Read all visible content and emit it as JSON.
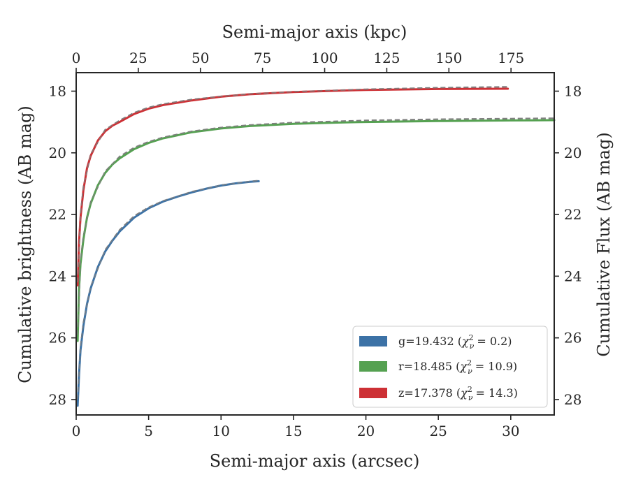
{
  "chart_data": {
    "type": "line",
    "xlabel": "Semi-major axis (arcsec)",
    "xlabel_top": "Semi-major axis (kpc)",
    "ylabel": "Cumulative brightness (AB mag)",
    "ylabel_right": "Cumulative Flux (AB mag)",
    "xlim": [
      0,
      33
    ],
    "ylim": [
      28.5,
      17.4
    ],
    "y_inverted": true,
    "x_ticks": [
      "0",
      "5",
      "10",
      "15",
      "20",
      "25",
      "30"
    ],
    "x_tick_values": [
      0,
      5,
      10,
      15,
      20,
      25,
      30
    ],
    "x_top_ticks": [
      "0",
      "25",
      "50",
      "75",
      "100",
      "125",
      "150",
      "175"
    ],
    "x_top_tick_values": [
      0,
      25,
      50,
      75,
      100,
      125,
      150,
      175
    ],
    "kpc_per_arcsec": 5.83,
    "y_ticks": [
      "18",
      "20",
      "22",
      "24",
      "26",
      "28"
    ],
    "y_tick_values": [
      18,
      20,
      22,
      24,
      26,
      28
    ],
    "grid": false,
    "legend_position": "bottom-right",
    "series": [
      {
        "name": "g",
        "legend_text": "g=19.432 (",
        "chi_value": "= 0.2)",
        "color": "#3c72a6",
        "x": [
          0.1,
          0.2,
          0.3,
          0.5,
          0.75,
          1,
          1.5,
          2,
          2.5,
          3,
          4,
          5,
          6,
          7,
          8,
          9,
          10,
          11,
          12,
          12.6
        ],
        "y": [
          28.2,
          27.2,
          26.4,
          25.6,
          24.9,
          24.4,
          23.7,
          23.2,
          22.85,
          22.55,
          22.1,
          21.8,
          21.58,
          21.42,
          21.28,
          21.16,
          21.06,
          20.99,
          20.94,
          20.92
        ]
      },
      {
        "name": "r",
        "legend_text": "r=18.485 (",
        "chi_value": "= 10.9)",
        "color": "#55a151",
        "x": [
          0.1,
          0.2,
          0.3,
          0.5,
          0.75,
          1,
          1.5,
          2,
          2.5,
          3,
          4,
          5,
          6,
          8,
          10,
          12,
          15,
          18,
          20,
          25,
          30,
          33
        ],
        "y": [
          26.1,
          24.4,
          23.6,
          22.8,
          22.1,
          21.65,
          21.05,
          20.65,
          20.38,
          20.18,
          19.88,
          19.68,
          19.53,
          19.33,
          19.21,
          19.13,
          19.06,
          19.02,
          19.0,
          18.97,
          18.95,
          18.94
        ]
      },
      {
        "name": "z",
        "legend_text": "z=17.378 (",
        "chi_value": "= 14.3)",
        "color": "#cd3035",
        "x": [
          0.1,
          0.2,
          0.3,
          0.5,
          0.75,
          1,
          1.5,
          2,
          2.5,
          3,
          4,
          5,
          6,
          8,
          10,
          12,
          15,
          20,
          25,
          29.8
        ],
        "y": [
          24.3,
          22.9,
          22.1,
          21.2,
          20.5,
          20.1,
          19.6,
          19.3,
          19.12,
          19.0,
          18.74,
          18.57,
          18.45,
          18.3,
          18.18,
          18.1,
          18.03,
          17.96,
          17.93,
          17.92
        ]
      }
    ],
    "fit_curves": [
      {
        "series": "g",
        "style": "dashed",
        "color": "#7f7f7f",
        "x": [
          0.1,
          0.3,
          0.5,
          1,
          2,
          3,
          4,
          5,
          6,
          8,
          10,
          12,
          12.6
        ],
        "y": [
          28.0,
          26.3,
          25.5,
          24.35,
          23.15,
          22.5,
          22.05,
          21.77,
          21.56,
          21.26,
          21.05,
          20.93,
          20.9
        ]
      },
      {
        "series": "r",
        "style": "dashed",
        "color": "#7f7f7f",
        "x": [
          0.1,
          0.3,
          0.5,
          1,
          2,
          3,
          4,
          5,
          6,
          8,
          10,
          12,
          15,
          20,
          25,
          30,
          33
        ],
        "y": [
          25.9,
          23.5,
          22.7,
          21.6,
          20.6,
          20.12,
          19.83,
          19.64,
          19.5,
          19.3,
          19.18,
          19.1,
          19.02,
          18.95,
          18.91,
          18.89,
          18.88
        ]
      },
      {
        "series": "z",
        "style": "dashed",
        "color": "#7f7f7f",
        "x": [
          0.1,
          0.3,
          0.5,
          1,
          2,
          3,
          4,
          5,
          6,
          8,
          10,
          12,
          15,
          20,
          25,
          29.8
        ],
        "y": [
          24.2,
          22.0,
          21.1,
          20.05,
          19.25,
          18.95,
          18.7,
          18.53,
          18.42,
          18.27,
          18.17,
          18.09,
          18.02,
          17.94,
          17.89,
          17.86
        ]
      }
    ]
  }
}
